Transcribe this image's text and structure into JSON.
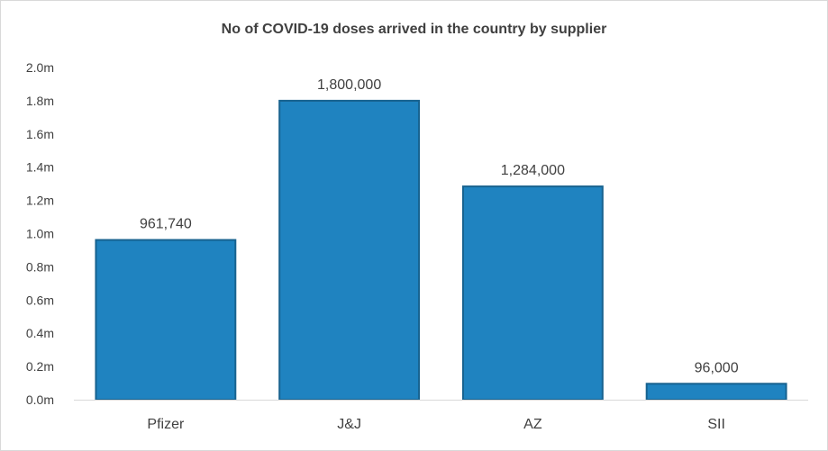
{
  "chart_data": {
    "type": "bar",
    "title": "No of COVID-19 doses arrived in the country by supplier",
    "xlabel": "",
    "ylabel": "",
    "categories": [
      "Pfizer",
      "J&J",
      "AZ",
      "SII"
    ],
    "values": [
      961740,
      1800000,
      1284000,
      96000
    ],
    "data_labels": [
      "961,740",
      "1,800,000",
      "1,284,000",
      "96,000"
    ],
    "ylim": [
      0,
      2000000
    ],
    "y_ticks": [
      0,
      200000,
      400000,
      600000,
      800000,
      1000000,
      1200000,
      1400000,
      1600000,
      1800000,
      2000000
    ],
    "y_tick_labels": [
      "0.0m",
      "0.2m",
      "0.4m",
      "0.6m",
      "0.8m",
      "1.0m",
      "1.2m",
      "1.4m",
      "1.6m",
      "1.8m",
      "2.0m"
    ],
    "grid": false,
    "legend": "none",
    "colors": {
      "bar_fill": "#1f83c0",
      "bar_edge": "#17628f",
      "axis_line": "#d9d9d9",
      "text": "#404040"
    }
  }
}
